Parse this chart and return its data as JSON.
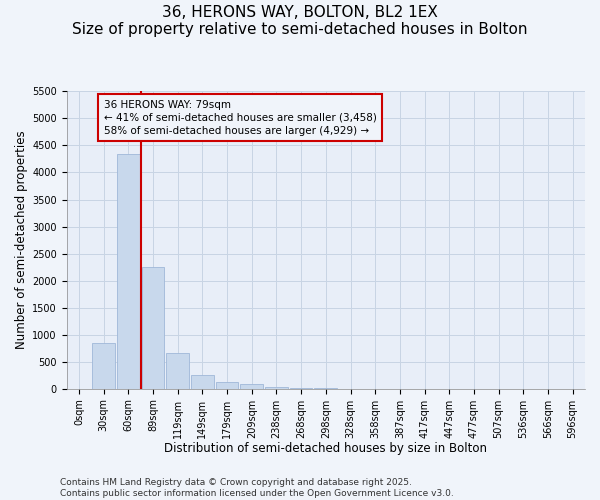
{
  "title": "36, HERONS WAY, BOLTON, BL2 1EX",
  "subtitle": "Size of property relative to semi-detached houses in Bolton",
  "xlabel": "Distribution of semi-detached houses by size in Bolton",
  "ylabel": "Number of semi-detached properties",
  "bin_labels": [
    "0sqm",
    "30sqm",
    "60sqm",
    "89sqm",
    "119sqm",
    "149sqm",
    "179sqm",
    "209sqm",
    "238sqm",
    "268sqm",
    "298sqm",
    "328sqm",
    "358sqm",
    "387sqm",
    "417sqm",
    "447sqm",
    "477sqm",
    "507sqm",
    "536sqm",
    "566sqm",
    "596sqm"
  ],
  "bar_values": [
    0,
    850,
    4350,
    2250,
    670,
    260,
    130,
    80,
    30,
    20,
    5,
    0,
    0,
    0,
    0,
    0,
    0,
    0,
    0,
    0,
    0
  ],
  "bar_color": "#c8d8ec",
  "bar_edgecolor": "#a0b8d8",
  "grid_color": "#c8d4e4",
  "background_color": "#f0f4fa",
  "plot_bg_color": "#e8eef8",
  "ylim": [
    0,
    5500
  ],
  "yticks": [
    0,
    500,
    1000,
    1500,
    2000,
    2500,
    3000,
    3500,
    4000,
    4500,
    5000,
    5500
  ],
  "property_line_x": 2.5,
  "annotation_title": "36 HERONS WAY: 79sqm",
  "annotation_line1": "← 41% of semi-detached houses are smaller (3,458)",
  "annotation_line2": "58% of semi-detached houses are larger (4,929) →",
  "annotation_box_color": "#cc0000",
  "footer_line1": "Contains HM Land Registry data © Crown copyright and database right 2025.",
  "footer_line2": "Contains public sector information licensed under the Open Government Licence v3.0.",
  "title_fontsize": 11,
  "subtitle_fontsize": 9.5,
  "axis_label_fontsize": 8.5,
  "tick_fontsize": 7,
  "annotation_fontsize": 7.5,
  "footer_fontsize": 6.5
}
